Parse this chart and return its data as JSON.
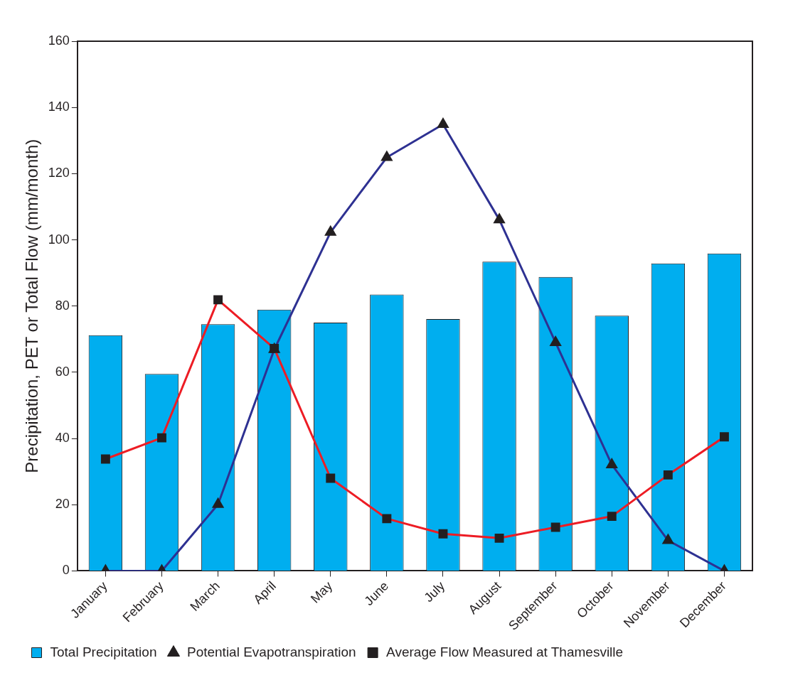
{
  "chart_data": {
    "type": "bar",
    "ylabel": "Precipitation, PET or Total Flow (mm/month)",
    "categories": [
      "January",
      "February",
      "March",
      "April",
      "May",
      "June",
      "July",
      "August",
      "September",
      "October",
      "November",
      "December"
    ],
    "series": [
      {
        "name": "Total Precipitation",
        "color": "#00aeef",
        "values": [
          71.2,
          59.5,
          74.5,
          78.9,
          75,
          83.5,
          76.1,
          93.4,
          88.8,
          77.1,
          92.9,
          95.9
        ]
      },
      {
        "name": "Potential Evapotranspiration",
        "type": "line",
        "color": "#2e3192",
        "marker": "triangle",
        "values": [
          0,
          0,
          20.1,
          66.9,
          102.3,
          124.9,
          134.9,
          106.1,
          69,
          32.1,
          9.2,
          0
        ]
      },
      {
        "name": "Average Flow Measured at Thamesville",
        "type": "line",
        "color": "#ed1c24",
        "marker": "square",
        "values": [
          33.8,
          40.2,
          81.9,
          67.2,
          28,
          15.8,
          11.2,
          9.9,
          13.2,
          16.5,
          29,
          40.5
        ]
      }
    ],
    "ylim": [
      0,
      160
    ],
    "yticks": [
      0,
      20,
      40,
      60,
      80,
      100,
      120,
      140,
      160
    ],
    "grid": false,
    "legend": "bottom left"
  }
}
